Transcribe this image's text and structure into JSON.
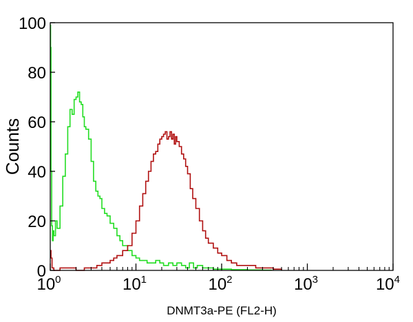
{
  "chart_data": {
    "type": "line",
    "title": "",
    "xlabel": "DNMT3a-PE  (FL2-H)",
    "ylabel": "Counts",
    "x_scale": "log",
    "xlim": [
      1,
      10000
    ],
    "ylim": [
      0,
      100
    ],
    "x_ticks": [
      {
        "value": 1,
        "base": "10",
        "exp": "0"
      },
      {
        "value": 10,
        "base": "10",
        "exp": "1"
      },
      {
        "value": 100,
        "base": "10",
        "exp": "2"
      },
      {
        "value": 1000,
        "base": "10",
        "exp": "3"
      },
      {
        "value": 10000,
        "base": "10",
        "exp": "4"
      }
    ],
    "y_ticks": [
      {
        "value": 0,
        "label": "0"
      },
      {
        "value": 20,
        "label": "20"
      },
      {
        "value": 40,
        "label": "40"
      },
      {
        "value": 60,
        "label": "60"
      },
      {
        "value": 80,
        "label": "80"
      },
      {
        "value": 100,
        "label": "100"
      }
    ],
    "grid": false,
    "legend": "none",
    "series": [
      {
        "color": "#22dd22",
        "x": [
          1.0,
          1.01,
          1.02,
          1.04,
          1.06,
          1.08,
          1.1,
          1.15,
          1.2,
          1.3,
          1.4,
          1.5,
          1.6,
          1.7,
          1.8,
          1.9,
          2.0,
          2.1,
          2.2,
          2.3,
          2.4,
          2.5,
          2.6,
          2.8,
          3.0,
          3.2,
          3.4,
          3.6,
          3.8,
          4.0,
          4.3,
          4.6,
          5.0,
          5.5,
          6.0,
          6.5,
          7.0,
          8.0,
          9.0,
          10.0,
          11.0,
          12.0,
          13.5,
          15.0,
          17.0,
          19.0,
          21.0,
          24.0,
          27.0,
          30.0,
          34.0,
          38.0,
          42.0,
          47.0,
          52.0,
          60.0,
          70.0,
          80.0,
          100.0,
          130.0,
          200.0,
          300.0,
          380.0
        ],
        "y": [
          99,
          90,
          40,
          18,
          12,
          16,
          14,
          20,
          17,
          26,
          38,
          47,
          58,
          65,
          63,
          69,
          70,
          72,
          68,
          67,
          62,
          58,
          57,
          53,
          44,
          36,
          32,
          30,
          29,
          25,
          23,
          22,
          19,
          17,
          14,
          12,
          10,
          8,
          6,
          5,
          4,
          4,
          3,
          3,
          4,
          3,
          2,
          3,
          2,
          3,
          2,
          1,
          3,
          1,
          2,
          1,
          1,
          0.5,
          0.5,
          0.3,
          0.2,
          0.1,
          0
        ]
      },
      {
        "color": "#b01010",
        "x": [
          1.0,
          1.02,
          1.05,
          1.1,
          1.3,
          1.6,
          2.0,
          2.5,
          3.0,
          3.5,
          4.0,
          4.5,
          5.0,
          5.5,
          6.0,
          7.0,
          8.0,
          9.0,
          10.0,
          11.0,
          12.0,
          13.0,
          14.0,
          15.0,
          16.0,
          17.0,
          18.0,
          19.0,
          20.0,
          21.0,
          22.0,
          23.0,
          24.0,
          25.0,
          26.0,
          27.0,
          28.0,
          29.0,
          30.0,
          32.0,
          34.0,
          36.0,
          38.0,
          40.0,
          43.0,
          46.0,
          50.0,
          55.0,
          60.0,
          65.0,
          70.0,
          80.0,
          90.0,
          100.0,
          115.0,
          130.0,
          150.0,
          175.0,
          200.0,
          250.0,
          300.0,
          400.0,
          500.0
        ],
        "y": [
          8,
          5,
          1,
          0,
          1,
          1,
          0,
          1,
          1,
          2,
          3,
          3,
          4,
          5,
          6,
          8,
          10,
          15,
          20,
          26,
          31,
          36,
          40,
          44,
          47,
          48,
          51,
          53,
          54,
          55,
          56,
          53,
          54,
          56,
          53,
          55,
          51,
          54,
          52,
          50,
          47,
          45,
          42,
          39,
          33,
          29,
          25,
          20,
          16,
          13,
          11,
          9,
          7,
          6,
          4,
          3,
          2,
          2,
          2,
          1,
          1,
          0.5,
          0
        ]
      }
    ]
  }
}
